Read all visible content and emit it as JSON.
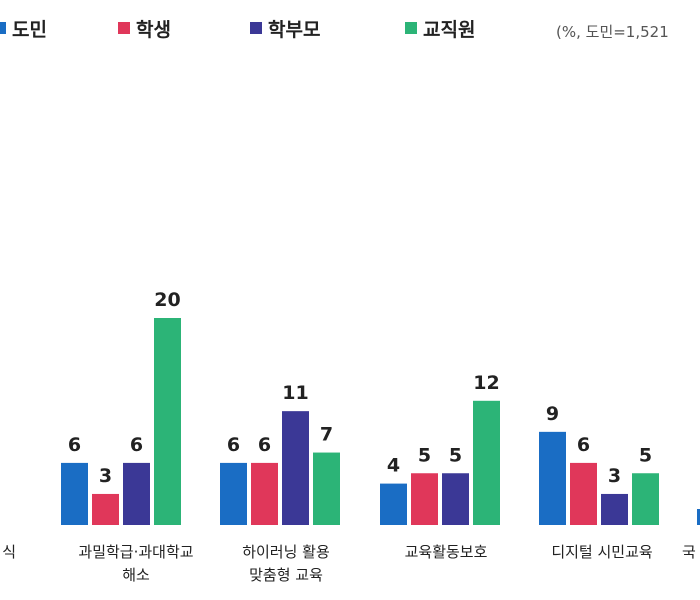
{
  "legend": {
    "items": [
      {
        "label": "도민",
        "color": "#1a6dc4"
      },
      {
        "label": "학생",
        "color": "#e0375a"
      },
      {
        "label": "학부모",
        "color": "#3b3896"
      },
      {
        "label": "교직원",
        "color": "#2cb477"
      }
    ],
    "note": "(%, 도민=1,521"
  },
  "chart_data": {
    "type": "bar",
    "title": "",
    "xlabel": "",
    "ylabel": "",
    "ylim": [
      0,
      20
    ],
    "categories": [
      [
        "식"
      ],
      [
        "과밀학급·과대학교",
        "해소"
      ],
      [
        "하이러닝 활용",
        "맞춤형 교육"
      ],
      [
        "교육활동보호"
      ],
      [
        "디지털 시민교육"
      ],
      [
        "국"
      ]
    ],
    "series": [
      {
        "name": "도민",
        "values": [
          null,
          6,
          6,
          4,
          9,
          null
        ]
      },
      {
        "name": "학생",
        "values": [
          null,
          3,
          6,
          5,
          6,
          null
        ]
      },
      {
        "name": "학부모",
        "values": [
          null,
          6,
          11,
          5,
          3,
          null
        ]
      },
      {
        "name": "교직원",
        "values": [
          0,
          20,
          7,
          12,
          5,
          null
        ]
      }
    ]
  }
}
